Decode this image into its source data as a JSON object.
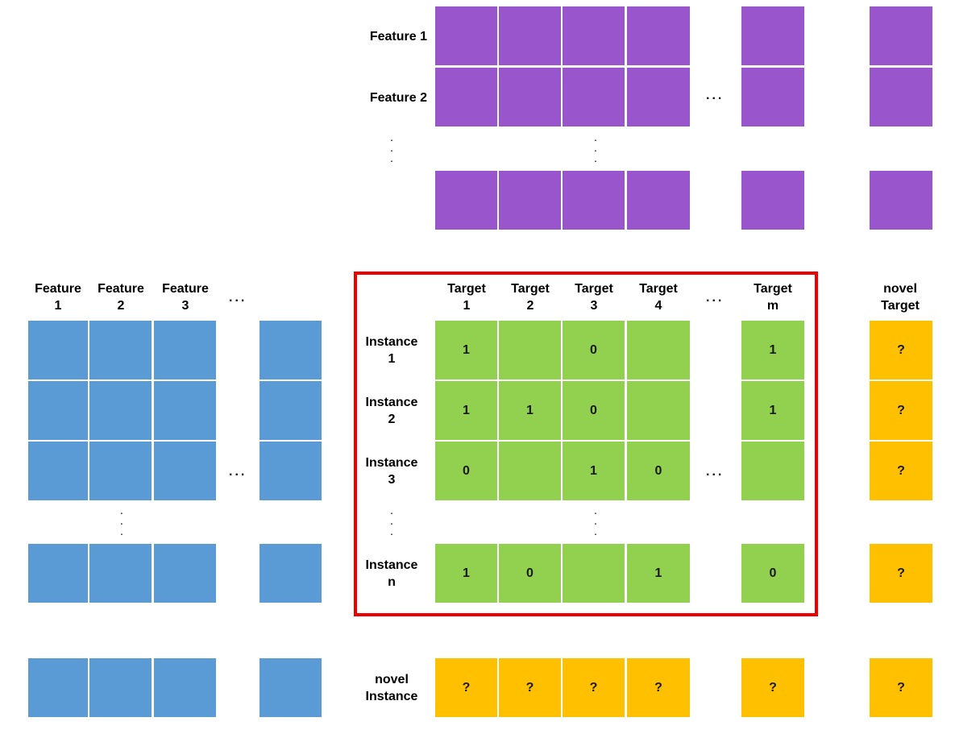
{
  "colors": {
    "feature_side_info": "#9955cc",
    "instance_features": "#5b9bd5",
    "known_labels": "#92d050",
    "unknown": "#ffc000",
    "highlight_frame": "#ee0000"
  },
  "top_rows": {
    "row_labels": [
      "Feature 1",
      "Feature 2"
    ],
    "ellipsis": "..."
  },
  "left_features": {
    "col_labels": [
      {
        "line1": "Feature",
        "line2": "1"
      },
      {
        "line1": "Feature",
        "line2": "2"
      },
      {
        "line1": "Feature",
        "line2": "3"
      }
    ],
    "ellipsis": "..."
  },
  "targets": {
    "col_labels": [
      {
        "line1": "Target",
        "line2": "1"
      },
      {
        "line1": "Target",
        "line2": "2"
      },
      {
        "line1": "Target",
        "line2": "3"
      },
      {
        "line1": "Target",
        "line2": "4"
      },
      {
        "line1": "Target",
        "line2": "m"
      }
    ],
    "novel_label": {
      "line1": "novel",
      "line2": "Target"
    },
    "ellipsis": "..."
  },
  "instances": {
    "row_labels": [
      {
        "line1": "Instance",
        "line2": "1"
      },
      {
        "line1": "Instance",
        "line2": "2"
      },
      {
        "line1": "Instance",
        "line2": "3"
      },
      {
        "line1": "Instance",
        "line2": "n"
      }
    ],
    "novel_label": {
      "line1": "novel",
      "line2": "Instance"
    },
    "values": [
      [
        "1",
        "",
        "0",
        "",
        "1"
      ],
      [
        "1",
        "1",
        "0",
        "",
        "1"
      ],
      [
        "0",
        "",
        "1",
        "0",
        ""
      ],
      [
        "1",
        "0",
        "",
        "1",
        "0"
      ]
    ],
    "unknown_mark": "?",
    "ellipsis": "..."
  }
}
